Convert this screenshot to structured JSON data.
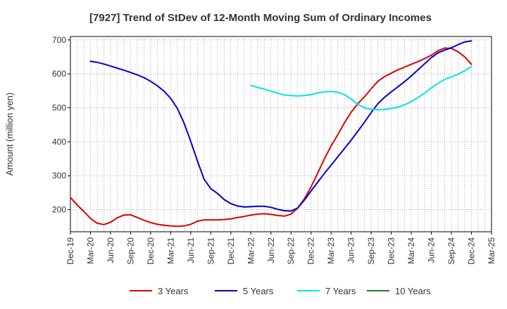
{
  "chart_data": {
    "type": "line",
    "title": "[7927]  Trend of StDev of 12-Month Moving Sum of Ordinary Incomes",
    "ylabel": "Amount (million yen)",
    "xlabel": "",
    "ylim": [
      135,
      710
    ],
    "yticks": [
      200,
      300,
      400,
      500,
      600,
      700
    ],
    "x_ticks": [
      "Dec-19",
      "Mar-20",
      "Jun-20",
      "Sep-20",
      "Dec-20",
      "Mar-21",
      "Jun-21",
      "Sep-21",
      "Dec-21",
      "Mar-22",
      "Jun-22",
      "Sep-22",
      "Dec-22",
      "Mar-23",
      "Jun-23",
      "Sep-23",
      "Dec-23",
      "Mar-24",
      "Jun-24",
      "Sep-24",
      "Dec-24",
      "Mar-25"
    ],
    "grid": true,
    "legend_position": "bottom",
    "series": [
      {
        "name": "3 Years",
        "color": "#dd0000",
        "x": [
          "Dec-19",
          "Jan-20",
          "Feb-20",
          "Mar-20",
          "Apr-20",
          "May-20",
          "Jun-20",
          "Jul-20",
          "Aug-20",
          "Sep-20",
          "Oct-20",
          "Nov-20",
          "Dec-20",
          "Jan-21",
          "Feb-21",
          "Mar-21",
          "Apr-21",
          "May-21",
          "Jun-21",
          "Jul-21",
          "Aug-21",
          "Sep-21",
          "Oct-21",
          "Nov-21",
          "Dec-21",
          "Jan-22",
          "Feb-22",
          "Mar-22",
          "Apr-22",
          "May-22",
          "Jun-22",
          "Jul-22",
          "Aug-22",
          "Sep-22",
          "Oct-22",
          "Nov-22",
          "Dec-22",
          "Jan-23",
          "Feb-23",
          "Mar-23",
          "Apr-23",
          "May-23",
          "Jun-23",
          "Jul-23",
          "Aug-23",
          "Sep-23",
          "Oct-23",
          "Nov-23",
          "Dec-23",
          "Jan-24",
          "Feb-24",
          "Mar-24",
          "Apr-24",
          "May-24",
          "Jun-24",
          "Jul-24",
          "Aug-24",
          "Sep-24",
          "Oct-24",
          "Nov-24",
          "Dec-24"
        ],
        "y": [
          236,
          214,
          195,
          174,
          160,
          156,
          163,
          176,
          184,
          185,
          177,
          169,
          162,
          157,
          154,
          152,
          151,
          152,
          157,
          166,
          170,
          170,
          170,
          171,
          173,
          177,
          180,
          184,
          187,
          188,
          186,
          183,
          181,
          187,
          205,
          232,
          267,
          308,
          350,
          388,
          421,
          456,
          487,
          512,
          533,
          556,
          578,
          592,
          602,
          612,
          620,
          628,
          636,
          645,
          655,
          668,
          676,
          675,
          665,
          650,
          628
        ]
      },
      {
        "name": "5 Years",
        "color": "#0000cc",
        "x": [
          "Mar-20",
          "Apr-20",
          "May-20",
          "Jun-20",
          "Jul-20",
          "Aug-20",
          "Sep-20",
          "Oct-20",
          "Nov-20",
          "Dec-20",
          "Jan-21",
          "Feb-21",
          "Mar-21",
          "Apr-21",
          "May-21",
          "Jun-21",
          "Jul-21",
          "Aug-21",
          "Sep-21",
          "Oct-21",
          "Nov-21",
          "Dec-21",
          "Jan-22",
          "Feb-22",
          "Mar-22",
          "Apr-22",
          "May-22",
          "Jun-22",
          "Jul-22",
          "Aug-22",
          "Sep-22",
          "Oct-22",
          "Nov-22",
          "Dec-22",
          "Jan-23",
          "Feb-23",
          "Mar-23",
          "Apr-23",
          "May-23",
          "Jun-23",
          "Jul-23",
          "Aug-23",
          "Sep-23",
          "Oct-23",
          "Nov-23",
          "Dec-23",
          "Jan-24",
          "Feb-24",
          "Mar-24",
          "Apr-24",
          "May-24",
          "Jun-24",
          "Jul-24",
          "Aug-24",
          "Sep-24",
          "Oct-24",
          "Nov-24",
          "Dec-24"
        ],
        "y": [
          637,
          634,
          629,
          623,
          617,
          611,
          604,
          597,
          589,
          578,
          565,
          549,
          528,
          498,
          455,
          401,
          344,
          290,
          262,
          248,
          230,
          218,
          211,
          208,
          209,
          210,
          210,
          207,
          201,
          197,
          196,
          205,
          228,
          255,
          281,
          307,
          331,
          356,
          380,
          405,
          431,
          458,
          486,
          512,
          531,
          547,
          562,
          577,
          594,
          612,
          630,
          648,
          662,
          670,
          677,
          686,
          694,
          697
        ]
      },
      {
        "name": "7 Years",
        "color": "#00e5e5",
        "x": [
          "Mar-22",
          "Apr-22",
          "May-22",
          "Jun-22",
          "Jul-22",
          "Aug-22",
          "Sep-22",
          "Oct-22",
          "Nov-22",
          "Dec-22",
          "Jan-23",
          "Feb-23",
          "Mar-23",
          "Apr-23",
          "May-23",
          "Jun-23",
          "Jul-23",
          "Aug-23",
          "Sep-23",
          "Oct-23",
          "Nov-23",
          "Dec-23",
          "Jan-24",
          "Feb-24",
          "Mar-24",
          "Apr-24",
          "May-24",
          "Jun-24",
          "Jul-24",
          "Aug-24",
          "Sep-24",
          "Oct-24",
          "Nov-24",
          "Dec-24"
        ],
        "y": [
          566,
          560,
          555,
          549,
          543,
          538,
          536,
          535,
          536,
          539,
          544,
          547,
          548,
          546,
          539,
          526,
          510,
          500,
          496,
          494,
          495,
          498,
          502,
          509,
          518,
          530,
          543,
          559,
          572,
          584,
          591,
          599,
          609,
          622
        ]
      },
      {
        "name": "10 Years",
        "color": "#1a7f1a",
        "x": [],
        "y": []
      }
    ]
  }
}
